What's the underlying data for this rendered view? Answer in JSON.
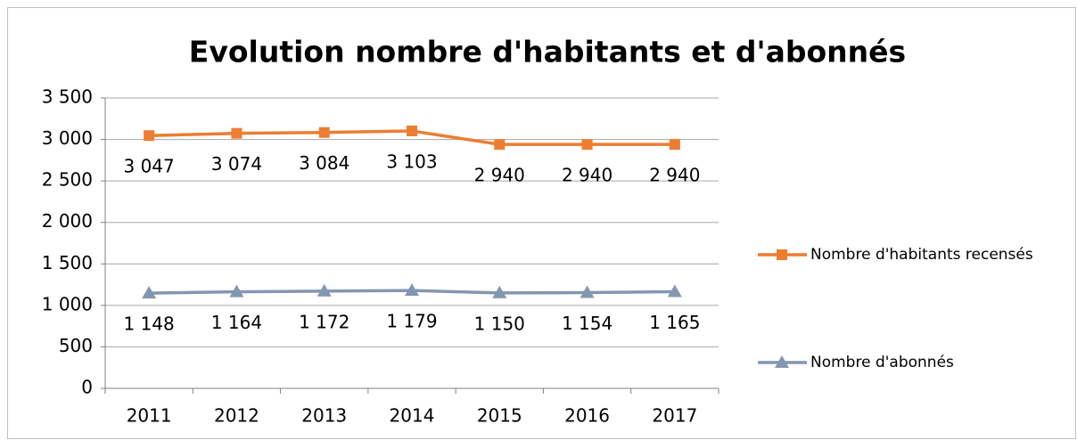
{
  "chart_data": {
    "type": "line",
    "title": "Evolution nombre d'habitants et d'abonnés",
    "categories": [
      "2011",
      "2012",
      "2013",
      "2014",
      "2015",
      "2016",
      "2017"
    ],
    "series": [
      {
        "name": "Nombre d'habitants recensés",
        "color": "#ed7d31",
        "marker": "square",
        "values": [
          3047,
          3074,
          3084,
          3103,
          2940,
          2940,
          2940
        ],
        "value_labels": [
          "3 047",
          "3 074",
          "3 084",
          "3 103",
          "2 940",
          "2 940",
          "2 940"
        ]
      },
      {
        "name": "Nombre d'abonnés",
        "color": "#8497b0",
        "marker": "triangle",
        "values": [
          1148,
          1164,
          1172,
          1179,
          1150,
          1154,
          1165
        ],
        "value_labels": [
          "1 148",
          "1 164",
          "1 172",
          "1 179",
          "1 150",
          "1 154",
          "1 165"
        ]
      }
    ],
    "ylim": [
      0,
      3500
    ],
    "yticks": [
      0,
      500,
      {
        "value": 1000,
        "label": "1 000"
      },
      {
        "value": 1500,
        "label": "1 500"
      },
      {
        "value": 2000,
        "label": "2 000"
      },
      {
        "value": 2500,
        "label": "2 500"
      },
      {
        "value": 3000,
        "label": "3 000"
      },
      {
        "value": 3500,
        "label": "3 500"
      }
    ],
    "grid": true,
    "legend": "right"
  }
}
